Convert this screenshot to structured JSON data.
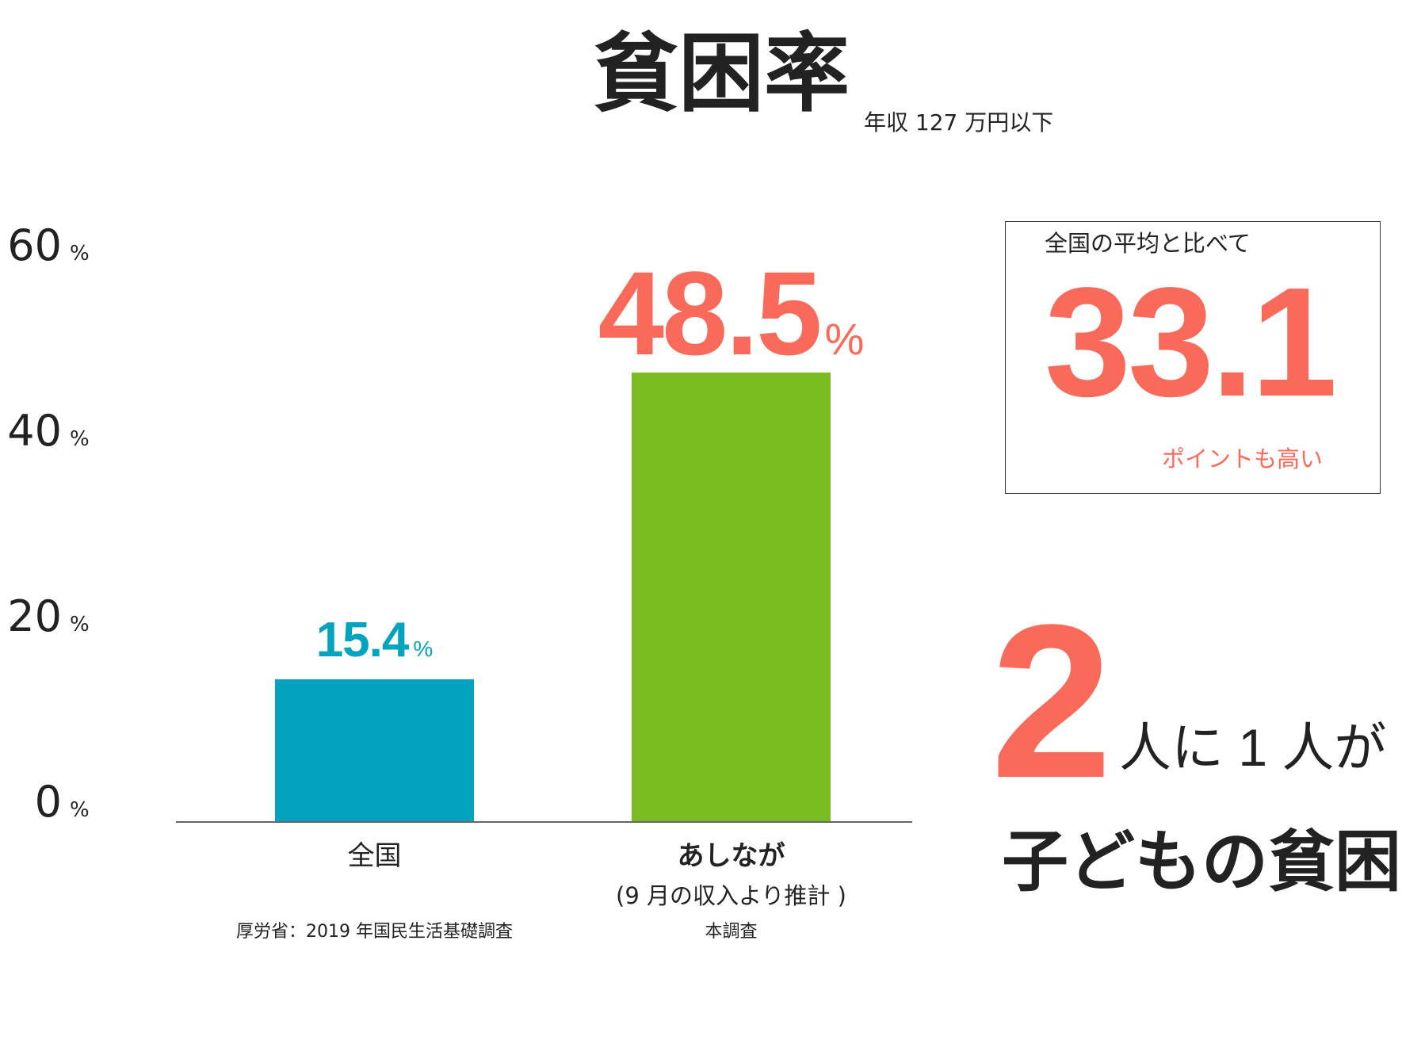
{
  "header": {
    "title": "貧困率",
    "subtitle": "年収 127 万円以下"
  },
  "chart_data": {
    "type": "bar",
    "categories": [
      "全国",
      "あしなが"
    ],
    "category_notes": [
      "",
      "(9 月の収入より推計 )"
    ],
    "sources": [
      "厚労省：2019 年国民生活基礎調査",
      "本調査"
    ],
    "values": [
      15.4,
      48.5
    ],
    "value_labels": [
      "15.4",
      "48.5"
    ],
    "unit": "%",
    "colors": [
      "#02a3bf",
      "#7bbc21"
    ],
    "label_colors": [
      "#02a3bf",
      "#fa6a5a"
    ],
    "ylim": [
      0,
      60
    ],
    "yticks": [
      "0",
      "20",
      "40",
      "60"
    ],
    "grid": false
  },
  "callout": {
    "label": "全国の平均と比べて",
    "value": "33.1",
    "unit_text": "ポイントも高い",
    "accent": "#fa6a5a"
  },
  "headline": {
    "number": "2",
    "ratio_text": "人に 1 人が",
    "subject": "子どもの貧困"
  }
}
